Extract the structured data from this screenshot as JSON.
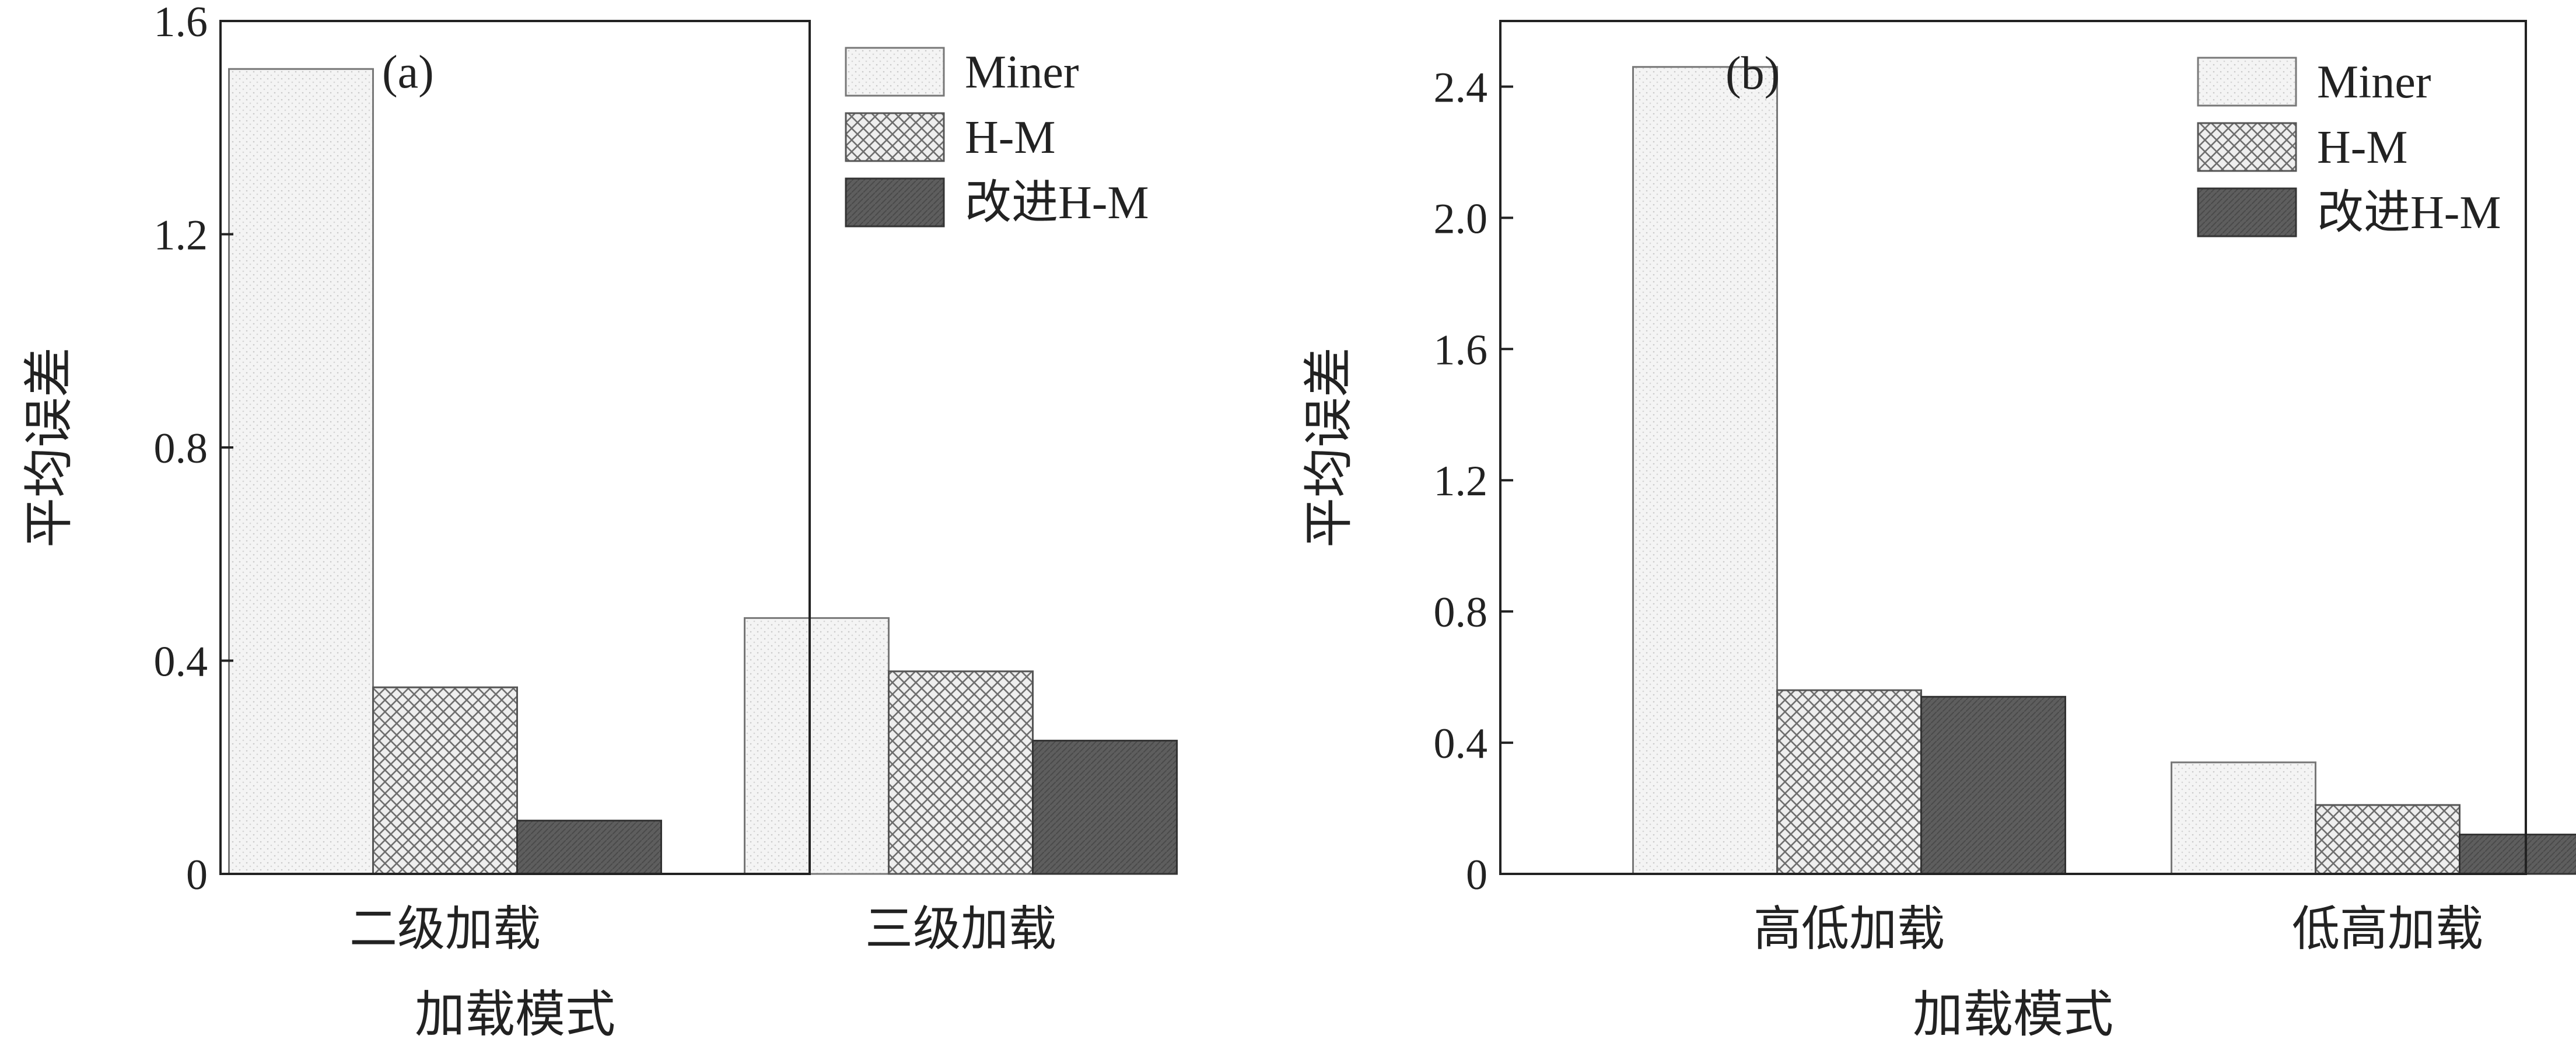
{
  "chart_data": [
    {
      "type": "bar",
      "panel_label": "(a)",
      "categories": [
        "二级加载",
        "三级加载"
      ],
      "series": [
        {
          "name": "Miner",
          "values": [
            1.51,
            0.48
          ]
        },
        {
          "name": "H-M",
          "values": [
            0.35,
            0.38
          ]
        },
        {
          "name": "改进H-M",
          "values": [
            0.1,
            0.25
          ]
        }
      ],
      "xlabel": "加载模式",
      "ylabel": "平均误差",
      "ylim": [
        0,
        1.6
      ],
      "yticks": [
        0,
        0.4,
        0.8,
        1.2,
        1.6
      ],
      "ytick_labels": [
        "0",
        "0.4",
        "0.8",
        "1.2",
        "1.6"
      ],
      "legend_position": "top-right",
      "grid": false
    },
    {
      "type": "bar",
      "panel_label": "(b)",
      "categories": [
        "高低加载",
        "低高加载"
      ],
      "series": [
        {
          "name": "Miner",
          "values": [
            2.46,
            0.34
          ]
        },
        {
          "name": "H-M",
          "values": [
            0.56,
            0.21
          ]
        },
        {
          "name": "改进H-M",
          "values": [
            0.54,
            0.12
          ]
        }
      ],
      "xlabel": "加载模式",
      "ylabel": "平均误差",
      "ylim": [
        0,
        2.6
      ],
      "yticks": [
        0,
        0.4,
        0.8,
        1.2,
        1.6,
        2.0,
        2.4
      ],
      "ytick_labels": [
        "0",
        "0.4",
        "0.8",
        "1.2",
        "1.6",
        "2.0",
        "2.4"
      ],
      "legend_position": "top-right",
      "grid": false
    }
  ],
  "series_styles": [
    {
      "fill": "#f3f3f3",
      "pattern": "dots"
    },
    {
      "fill": "#e6e6e6",
      "pattern": "crosshatch"
    },
    {
      "fill": "#5a5a5a",
      "pattern": "dark"
    }
  ]
}
